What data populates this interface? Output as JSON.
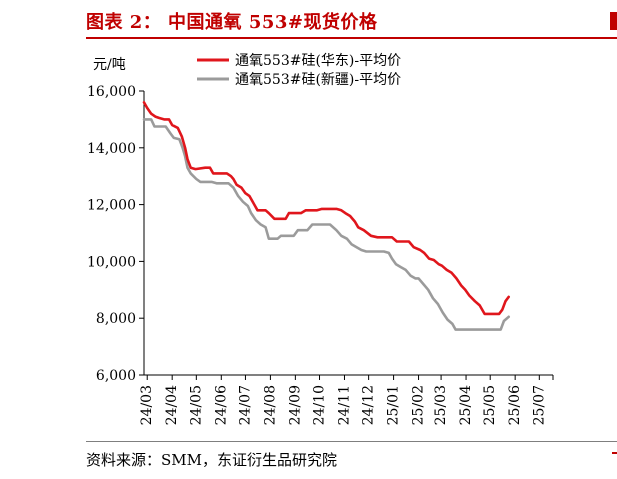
{
  "figure": {
    "title": "图表 2：  中国通氧 553#现货价格",
    "source": "资料来源：SMM，东证衍生品研究院"
  },
  "chart_data": {
    "type": "line",
    "ylabel": "元/吨",
    "xlabel": "",
    "ylim": [
      6000,
      16000
    ],
    "yticks": [
      6000,
      8000,
      10000,
      12000,
      14000,
      16000
    ],
    "ytick_labels": [
      "6,000",
      "8,000",
      "10,000",
      "12,000",
      "14,000",
      "16,000"
    ],
    "xlim": [
      "2024-02-26",
      "2025-07-18"
    ],
    "xtick_labels": [
      "24/03",
      "24/04",
      "24/05",
      "24/06",
      "24/07",
      "24/08",
      "24/09",
      "24/10",
      "24/11",
      "24/12",
      "25/01",
      "25/02",
      "25/03",
      "25/04",
      "25/05",
      "25/06",
      "25/07"
    ],
    "xtick_dates": [
      "2024-03-01",
      "2024-04-01",
      "2024-05-01",
      "2024-06-01",
      "2024-07-01",
      "2024-08-01",
      "2024-09-01",
      "2024-10-01",
      "2024-11-01",
      "2024-12-01",
      "2025-01-01",
      "2025-02-01",
      "2025-03-01",
      "2025-04-01",
      "2025-05-01",
      "2025-06-01",
      "2025-07-01"
    ],
    "legend_position": "top",
    "grid": false,
    "series": [
      {
        "name": "通氧553#硅(华东)-平均价",
        "color": "#e0161c",
        "points": [
          [
            "2024-02-26",
            15600
          ],
          [
            "2024-03-01",
            15400
          ],
          [
            "2024-03-06",
            15200
          ],
          [
            "2024-03-11",
            15100
          ],
          [
            "2024-03-16",
            15050
          ],
          [
            "2024-03-22",
            15000
          ],
          [
            "2024-03-28",
            15000
          ],
          [
            "2024-04-01",
            14800
          ],
          [
            "2024-04-08",
            14700
          ],
          [
            "2024-04-13",
            14400
          ],
          [
            "2024-04-17",
            14000
          ],
          [
            "2024-04-20",
            13600
          ],
          [
            "2024-04-24",
            13300
          ],
          [
            "2024-04-30",
            13250
          ],
          [
            "2024-05-12",
            13300
          ],
          [
            "2024-05-18",
            13300
          ],
          [
            "2024-05-22",
            13100
          ],
          [
            "2024-06-08",
            13100
          ],
          [
            "2024-06-13",
            13000
          ],
          [
            "2024-06-16",
            12900
          ],
          [
            "2024-06-20",
            12700
          ],
          [
            "2024-06-26",
            12600
          ],
          [
            "2024-07-01",
            12400
          ],
          [
            "2024-07-06",
            12300
          ],
          [
            "2024-07-10",
            12100
          ],
          [
            "2024-07-16",
            11800
          ],
          [
            "2024-07-26",
            11800
          ],
          [
            "2024-07-30",
            11700
          ],
          [
            "2024-08-06",
            11500
          ],
          [
            "2024-08-20",
            11500
          ],
          [
            "2024-08-24",
            11700
          ],
          [
            "2024-09-08",
            11700
          ],
          [
            "2024-09-14",
            11800
          ],
          [
            "2024-09-28",
            11800
          ],
          [
            "2024-10-04",
            11850
          ],
          [
            "2024-10-22",
            11850
          ],
          [
            "2024-10-28",
            11800
          ],
          [
            "2024-11-02",
            11700
          ],
          [
            "2024-11-08",
            11600
          ],
          [
            "2024-11-14",
            11400
          ],
          [
            "2024-11-18",
            11200
          ],
          [
            "2024-11-25",
            11100
          ],
          [
            "2024-12-04",
            10900
          ],
          [
            "2024-12-12",
            10850
          ],
          [
            "2024-12-30",
            10850
          ],
          [
            "2025-01-05",
            10700
          ],
          [
            "2025-01-20",
            10700
          ],
          [
            "2025-01-26",
            10500
          ],
          [
            "2025-02-03",
            10400
          ],
          [
            "2025-02-08",
            10300
          ],
          [
            "2025-02-14",
            10100
          ],
          [
            "2025-02-20",
            10050
          ],
          [
            "2025-02-26",
            9900
          ],
          [
            "2025-03-02",
            9850
          ],
          [
            "2025-03-08",
            9700
          ],
          [
            "2025-03-14",
            9600
          ],
          [
            "2025-03-20",
            9400
          ],
          [
            "2025-03-26",
            9150
          ],
          [
            "2025-03-31",
            9000
          ],
          [
            "2025-04-05",
            8800
          ],
          [
            "2025-04-12",
            8600
          ],
          [
            "2025-04-18",
            8450
          ],
          [
            "2025-04-24",
            8150
          ],
          [
            "2025-05-06",
            8150
          ],
          [
            "2025-05-12",
            8150
          ],
          [
            "2025-05-16",
            8300
          ],
          [
            "2025-05-20",
            8600
          ],
          [
            "2025-05-24",
            8750
          ]
        ]
      },
      {
        "name": "通氧553#硅(新疆)-平均价",
        "color": "#9b9b9b",
        "points": [
          [
            "2024-02-26",
            15000
          ],
          [
            "2024-03-06",
            15000
          ],
          [
            "2024-03-10",
            14750
          ],
          [
            "2024-03-24",
            14750
          ],
          [
            "2024-03-30",
            14500
          ],
          [
            "2024-04-03",
            14350
          ],
          [
            "2024-04-10",
            14300
          ],
          [
            "2024-04-14",
            14000
          ],
          [
            "2024-04-17",
            13700
          ],
          [
            "2024-04-20",
            13300
          ],
          [
            "2024-04-24",
            13100
          ],
          [
            "2024-05-01",
            12900
          ],
          [
            "2024-05-06",
            12800
          ],
          [
            "2024-05-20",
            12800
          ],
          [
            "2024-05-26",
            12750
          ],
          [
            "2024-06-10",
            12750
          ],
          [
            "2024-06-16",
            12600
          ],
          [
            "2024-06-22",
            12300
          ],
          [
            "2024-06-28",
            12100
          ],
          [
            "2024-07-04",
            11950
          ],
          [
            "2024-07-08",
            11700
          ],
          [
            "2024-07-14",
            11450
          ],
          [
            "2024-07-20",
            11300
          ],
          [
            "2024-07-26",
            11200
          ],
          [
            "2024-07-30",
            10800
          ],
          [
            "2024-08-10",
            10800
          ],
          [
            "2024-08-14",
            10900
          ],
          [
            "2024-08-30",
            10900
          ],
          [
            "2024-09-04",
            11100
          ],
          [
            "2024-09-16",
            11100
          ],
          [
            "2024-09-22",
            11300
          ],
          [
            "2024-10-14",
            11300
          ],
          [
            "2024-10-22",
            11100
          ],
          [
            "2024-10-28",
            10900
          ],
          [
            "2024-11-04",
            10800
          ],
          [
            "2024-11-10",
            10600
          ],
          [
            "2024-11-16",
            10500
          ],
          [
            "2024-11-22",
            10400
          ],
          [
            "2024-11-28",
            10350
          ],
          [
            "2024-12-20",
            10350
          ],
          [
            "2024-12-26",
            10300
          ],
          [
            "2024-12-30",
            10100
          ],
          [
            "2025-01-04",
            9900
          ],
          [
            "2025-01-10",
            9800
          ],
          [
            "2025-01-16",
            9700
          ],
          [
            "2025-01-22",
            9500
          ],
          [
            "2025-01-28",
            9400
          ],
          [
            "2025-02-01",
            9400
          ],
          [
            "2025-02-07",
            9200
          ],
          [
            "2025-02-13",
            9000
          ],
          [
            "2025-02-19",
            8700
          ],
          [
            "2025-02-25",
            8500
          ],
          [
            "2025-03-03",
            8200
          ],
          [
            "2025-03-09",
            7950
          ],
          [
            "2025-03-15",
            7800
          ],
          [
            "2025-03-19",
            7600
          ],
          [
            "2025-04-25",
            7600
          ],
          [
            "2025-05-06",
            7600
          ],
          [
            "2025-05-14",
            7600
          ],
          [
            "2025-05-18",
            7900
          ],
          [
            "2025-05-24",
            8050
          ]
        ]
      }
    ]
  }
}
